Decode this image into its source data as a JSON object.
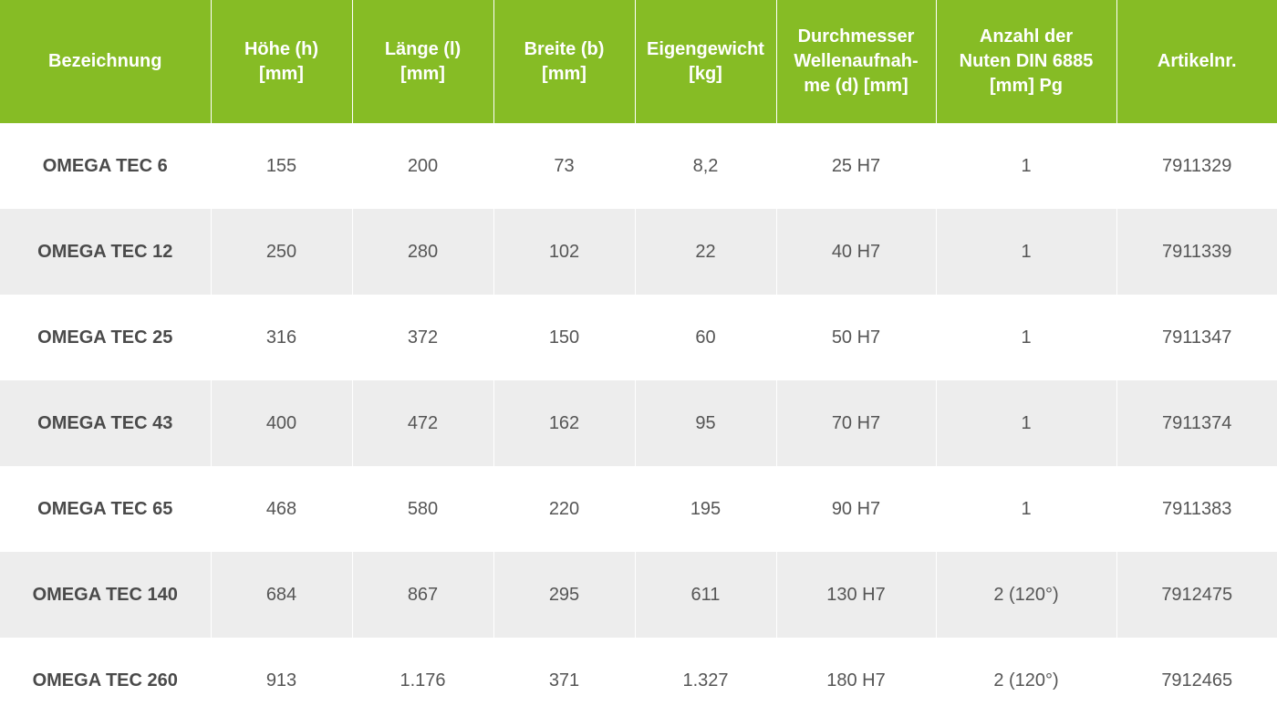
{
  "table": {
    "headers": [
      [
        "Bezeichnung"
      ],
      [
        "Höhe (h)",
        "[mm]"
      ],
      [
        "Länge (l)",
        "[mm]"
      ],
      [
        "Breite (b)",
        "[mm]"
      ],
      [
        "Eigengewicht",
        "[kg]"
      ],
      [
        "Durchmesser",
        "Wellenaufnah-",
        "me (d) [mm]"
      ],
      [
        "Anzahl der",
        "Nuten DIN 6885",
        "[mm] Pg"
      ],
      [
        "Artikelnr."
      ]
    ],
    "rows": [
      [
        "OMEGA TEC 6",
        "155",
        "200",
        "73",
        "8,2",
        "25 H7",
        "1",
        "7911329"
      ],
      [
        "OMEGA TEC 12",
        "250",
        "280",
        "102",
        "22",
        "40 H7",
        "1",
        "7911339"
      ],
      [
        "OMEGA TEC 25",
        "316",
        "372",
        "150",
        "60",
        "50 H7",
        "1",
        "7911347"
      ],
      [
        "OMEGA TEC 43",
        "400",
        "472",
        "162",
        "95",
        "70 H7",
        "1",
        "7911374"
      ],
      [
        "OMEGA TEC 65",
        "468",
        "580",
        "220",
        "195",
        "90 H7",
        "1",
        "7911383"
      ],
      [
        "OMEGA TEC 140",
        "684",
        "867",
        "295",
        "611",
        "130 H7",
        "2 (120°)",
        "7912475"
      ],
      [
        "OMEGA TEC 260",
        "913",
        "1.176",
        "371",
        "1.327",
        "180 H7",
        "2 (120°)",
        "7912465"
      ]
    ]
  },
  "colors": {
    "header_bg": "#86bc25",
    "header_text": "#ffffff",
    "row_alt_bg": "#ededed",
    "row_text": "#555555"
  }
}
